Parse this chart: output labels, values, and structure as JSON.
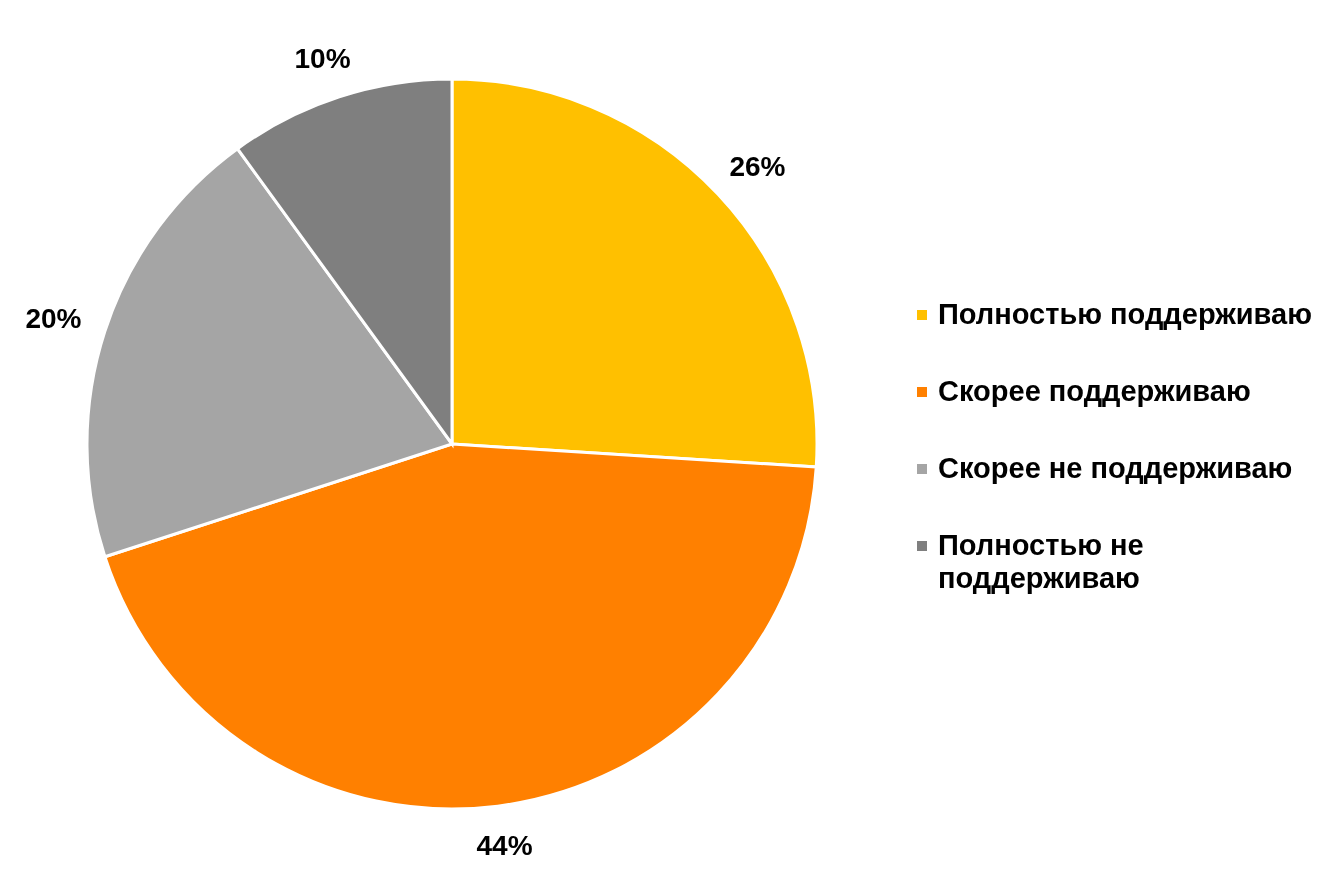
{
  "chart_data": {
    "type": "pie",
    "categories": [
      "Полностью поддерживаю",
      "Скорее поддерживаю",
      "Скорее не поддерживаю",
      "Полностью не поддерживаю"
    ],
    "values": [
      26,
      44,
      20,
      10
    ],
    "colors": [
      "#ffc000",
      "#ff8000",
      "#a5a5a5",
      "#7f7f7f"
    ],
    "value_labels": [
      "26%",
      "44%",
      "20%",
      "10%"
    ],
    "legend": "right"
  }
}
